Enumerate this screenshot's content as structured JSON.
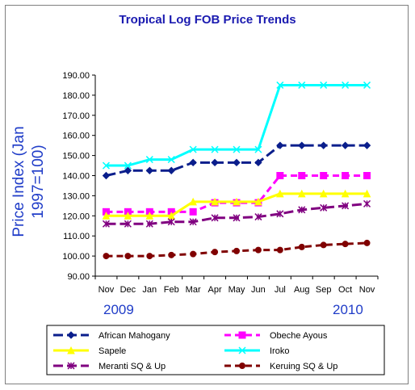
{
  "chart_data": {
    "type": "line",
    "title": "Tropical Log FOB Price Trends",
    "ylabel": "Price Index (Jan 1997=100)",
    "xlabel": "",
    "categories": [
      "Nov",
      "Dec",
      "Jan",
      "Feb",
      "Mar",
      "Apr",
      "May",
      "Jun",
      "Jul",
      "Aug",
      "Sep",
      "Oct",
      "Nov"
    ],
    "year_labels": [
      "2009",
      "2010"
    ],
    "ylim": [
      90,
      190
    ],
    "yticks": [
      "90.00",
      "100.00",
      "110.00",
      "120.00",
      "130.00",
      "140.00",
      "150.00",
      "160.00",
      "170.00",
      "180.00",
      "190.00"
    ],
    "grid": false,
    "legend_position": "bottom",
    "series": [
      {
        "name": "African Mahogany",
        "color": "#0a1e8c",
        "dash": "long-dash",
        "marker": "diamond",
        "values": [
          140,
          142.5,
          142.5,
          142.5,
          146.5,
          146.5,
          146.5,
          146.5,
          155,
          155,
          155,
          155,
          155
        ]
      },
      {
        "name": "Obeche Ayous",
        "color": "#ff00ff",
        "dash": "dash",
        "marker": "square",
        "values": [
          122,
          122,
          122,
          122,
          122,
          126.5,
          126.5,
          126.5,
          140,
          140,
          140,
          140,
          140
        ]
      },
      {
        "name": "Sapele",
        "color": "#ffff00",
        "dash": "solid",
        "marker": "triangle",
        "values": [
          120,
          120,
          120,
          120,
          127,
          127,
          127,
          127,
          131,
          131,
          131,
          131,
          131
        ]
      },
      {
        "name": "Iroko",
        "color": "#00ffff",
        "dash": "solid",
        "marker": "x",
        "values": [
          145,
          145,
          148,
          148,
          153,
          153,
          153,
          153,
          185,
          185,
          185,
          185,
          185
        ]
      },
      {
        "name": "Meranti SQ & Up",
        "color": "#800080",
        "dash": "long-dash",
        "marker": "star",
        "values": [
          116,
          116,
          116,
          117,
          117,
          119,
          119,
          119.5,
          121,
          123,
          124,
          125,
          126
        ]
      },
      {
        "name": "Keruing SQ & Up",
        "color": "#800000",
        "dash": "dash",
        "marker": "circle",
        "values": [
          100,
          100,
          100,
          100.5,
          101,
          102,
          102.5,
          103,
          103,
          104.5,
          105.5,
          106,
          106.5
        ]
      }
    ]
  }
}
